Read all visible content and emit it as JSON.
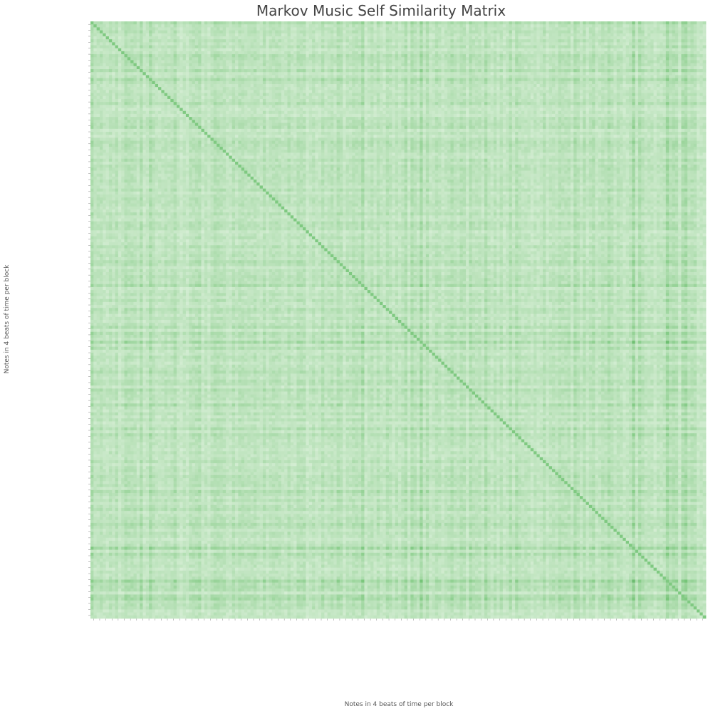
{
  "chart_data": {
    "type": "heatmap",
    "title": "Markov Music Self Similarity Matrix",
    "xlabel": "Notes in 4 beats of time per block",
    "ylabel": "Notes in 4 beats of time per block",
    "n_blocks": 200,
    "colormap": {
      "low": "#f7fcf5",
      "high": "#00441b",
      "name": "Greens"
    },
    "value_range": [
      0,
      1
    ],
    "x_tick_labels": "dense, unreadable note-group labels (one per block)",
    "y_tick_labels": "dense, unreadable note-group labels (one per block)",
    "grid": false,
    "legend": "none"
  }
}
